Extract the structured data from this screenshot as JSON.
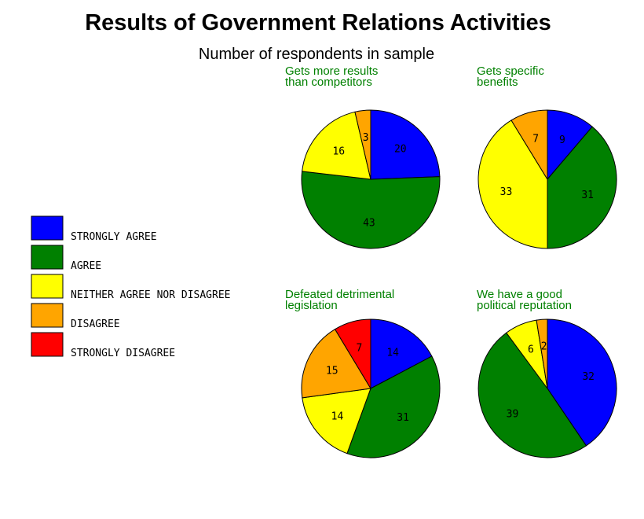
{
  "chart_data": {
    "type": "pie",
    "title": "Results of Government Relations Activities",
    "subtitle": "Number of respondents in sample",
    "categories": [
      "STRONGLY AGREE",
      "AGREE",
      "NEITHER AGREE NOR DISAGREE",
      "DISAGREE",
      "STRONGLY DISAGREE"
    ],
    "colors": [
      "#0000ff",
      "#008000",
      "#ffff00",
      "#ffa500",
      "#ff0000"
    ],
    "legend_position": "left",
    "charts": [
      {
        "title": [
          "Gets more results",
          "than competitors"
        ],
        "values": [
          20,
          43,
          16,
          3,
          0
        ]
      },
      {
        "title": [
          "Gets specific",
          "benefits"
        ],
        "values": [
          9,
          31,
          33,
          7,
          0
        ]
      },
      {
        "title": [
          "Defeated detrimental",
          "legislation"
        ],
        "values": [
          14,
          31,
          14,
          15,
          7
        ]
      },
      {
        "title": [
          "We have a good",
          "political reputation"
        ],
        "values": [
          32,
          39,
          6,
          2,
          0
        ]
      }
    ]
  }
}
